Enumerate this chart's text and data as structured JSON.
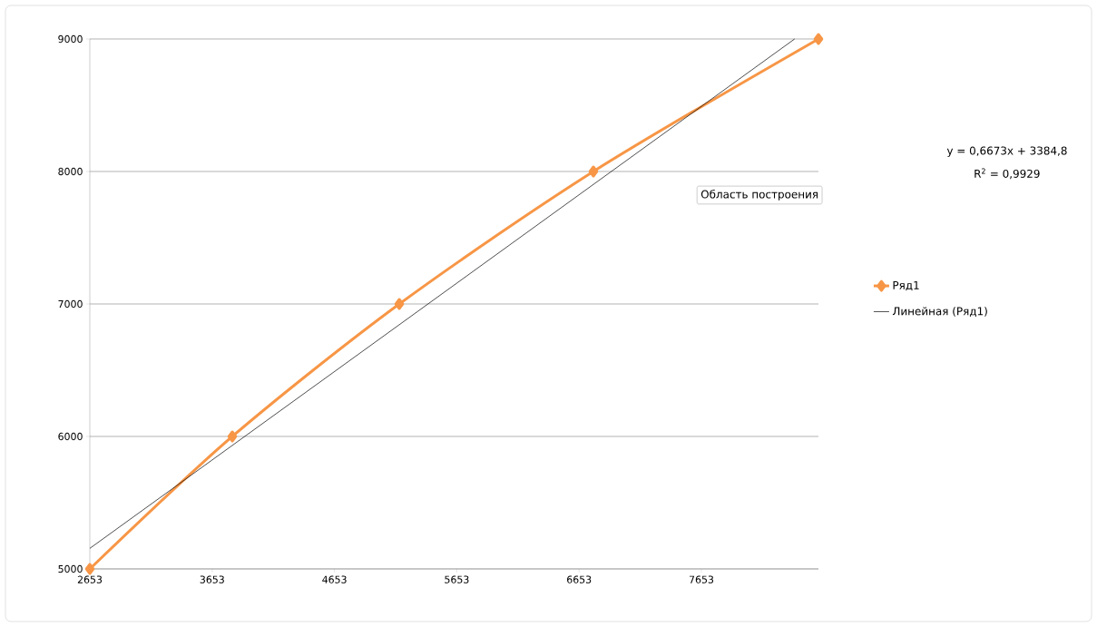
{
  "chart_data": {
    "type": "line",
    "x": [
      2653,
      3818,
      5183,
      6770,
      8610
    ],
    "series": [
      {
        "name": "Ряд1",
        "color": "#f79646",
        "values": [
          5000,
          6000,
          7000,
          8000,
          9000
        ],
        "marker": "diamond"
      },
      {
        "name": "Линейная (Ряд1)",
        "color": "#000000",
        "type": "line",
        "x": [
          2653,
          8415
        ],
        "values": [
          5155,
          9000
        ],
        "marker": "none"
      }
    ],
    "xlim": [
      2653,
      8610
    ],
    "xticks": [
      2653,
      3653,
      4653,
      5653,
      6653,
      7653
    ],
    "ylim": [
      5000,
      9000
    ],
    "yticks": [
      5000,
      6000,
      7000,
      8000,
      9000
    ],
    "grid": "y",
    "legend": "right",
    "annotations": [
      "y = 0,6673x + 3384,8",
      "R$^{2}$ = 0,9929",
      "Область построения"
    ]
  }
}
